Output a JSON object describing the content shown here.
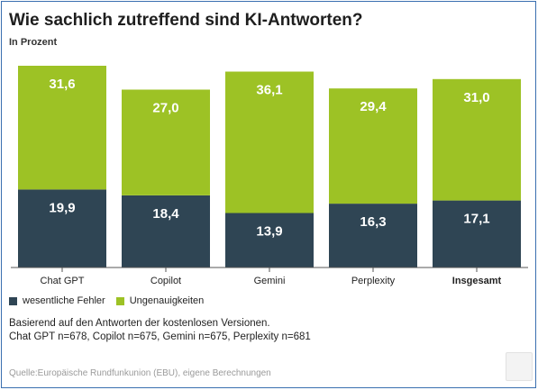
{
  "header": {
    "title": "Wie sachlich zutreffend sind KI-Antworten?",
    "subtitle": "In Prozent"
  },
  "colors": {
    "dark": "#2f4554",
    "green": "#9dc225",
    "label_light": "#ffffff"
  },
  "chart_data": {
    "type": "bar",
    "stacked": true,
    "categories": [
      "Chat GPT",
      "Copilot",
      "Gemini",
      "Perplexity",
      "Insgesamt"
    ],
    "series": [
      {
        "name": "wesentliche Fehler",
        "values": [
          19.9,
          18.4,
          13.9,
          16.3,
          17.1
        ],
        "labels": [
          "19,9",
          "18,4",
          "13,9",
          "16,3",
          "17,1"
        ]
      },
      {
        "name": "Ungenauigkeiten",
        "values": [
          31.6,
          27.0,
          36.1,
          29.4,
          31.0
        ],
        "labels": [
          "31,6",
          "27,0",
          "36,1",
          "29,4",
          "31,0"
        ]
      }
    ],
    "bold_categories": [
      "Insgesamt"
    ],
    "ylim": [
      0,
      51.5
    ],
    "grid": false,
    "legend_placement": "bottom-left"
  },
  "legend": {
    "items": [
      {
        "label": "wesentliche Fehler",
        "color": "#2f4554"
      },
      {
        "label": "Ungenauigkeiten",
        "color": "#9dc225"
      }
    ]
  },
  "notes": {
    "line1": "Basierend auf den Antworten der kostenlosen Versionen.",
    "line2": "Chat GPT n=678, Copilot n=675, Gemini n=675, Perplexity n=681"
  },
  "source": "Quelle:Europäische Rundfunkunion (EBU), eigene Berechnungen"
}
